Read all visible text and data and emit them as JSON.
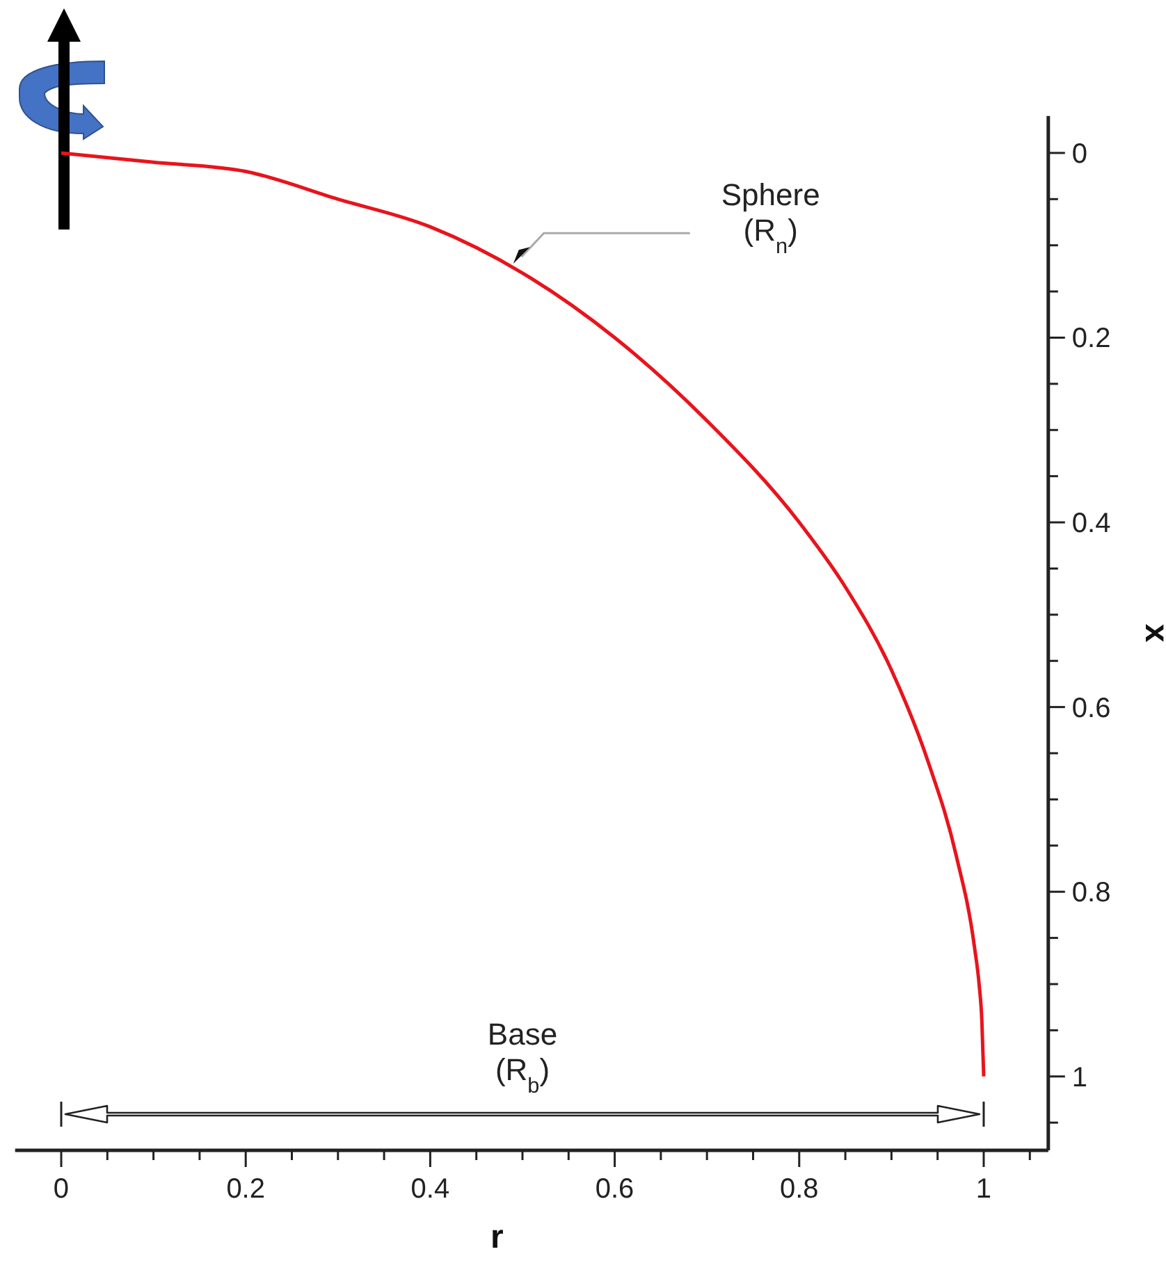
{
  "chart_data": {
    "type": "line",
    "xlabel": "r",
    "ylabel": "x",
    "x": [
      0,
      0.1,
      0.2,
      0.3,
      0.4,
      0.5,
      0.6,
      0.7,
      0.8,
      0.85,
      0.9,
      0.94,
      0.97,
      0.99,
      0.995,
      0.998,
      1
    ],
    "series": [
      {
        "color": "#e8141c",
        "values": [
          0,
          0.01,
          0.02,
          0.05,
          0.08,
          0.13,
          0.2,
          0.29,
          0.4,
          0.47,
          0.56,
          0.66,
          0.76,
          0.86,
          0.9,
          0.94,
          1
        ]
      }
    ],
    "xlim": [
      -0.05,
      1.07
    ],
    "ylim": [
      1.08,
      -0.04
    ],
    "xticks": [
      0,
      {
        "value": 0.05,
        "label": null
      },
      {
        "value": 0.1,
        "label": null
      },
      {
        "value": 0.15,
        "label": null
      },
      0.2,
      {
        "value": 0.25,
        "label": null
      },
      {
        "value": 0.3,
        "label": null
      },
      {
        "value": 0.35,
        "label": null
      },
      0.4,
      {
        "value": 0.45,
        "label": null
      },
      {
        "value": 0.5,
        "label": null
      },
      {
        "value": 0.55,
        "label": null
      },
      0.6,
      {
        "value": 0.65,
        "label": null
      },
      {
        "value": 0.7,
        "label": null
      },
      {
        "value": 0.75,
        "label": null
      },
      0.8,
      {
        "value": 0.85,
        "label": null
      },
      {
        "value": 0.9,
        "label": null
      },
      {
        "value": 0.95,
        "label": null
      },
      1,
      {
        "value": 1.05,
        "label": null
      }
    ],
    "yticks": [
      0,
      {
        "value": 0.05,
        "label": null
      },
      {
        "value": 0.1,
        "label": null
      },
      {
        "value": 0.15,
        "label": null
      },
      0.2,
      {
        "value": 0.25,
        "label": null
      },
      {
        "value": 0.3,
        "label": null
      },
      {
        "value": 0.35,
        "label": null
      },
      0.4,
      {
        "value": 0.45,
        "label": null
      },
      {
        "value": 0.5,
        "label": null
      },
      {
        "value": 0.55,
        "label": null
      },
      0.6,
      {
        "value": 0.65,
        "label": null
      },
      {
        "value": 0.7,
        "label": null
      },
      {
        "value": 0.75,
        "label": null
      },
      0.8,
      {
        "value": 0.85,
        "label": null
      },
      {
        "value": 0.9,
        "label": null
      },
      {
        "value": 0.95,
        "label": null
      },
      1,
      {
        "value": 1.05,
        "label": null
      }
    ],
    "annotations": [
      {
        "text": "Sphere\n(R$_{n}$)",
        "x": 0.49,
        "y": 0.12
      },
      "Base\n(R$_{b}$)"
    ],
    "grid": false,
    "marker": "none",
    "line_style": "solid"
  }
}
